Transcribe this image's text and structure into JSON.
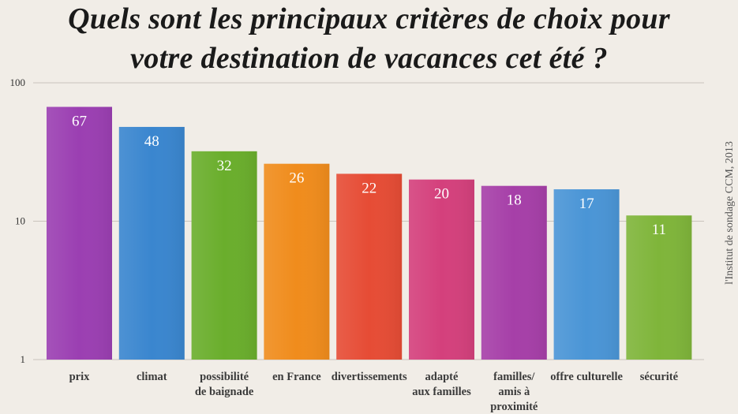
{
  "title_lines": [
    "Quels sont les principaux critères de choix pour",
    "votre destination de vacances cet été ?"
  ],
  "source": "l'Institut de sondage CCM, 2013",
  "chart_data": {
    "type": "bar",
    "title": "Quels sont les principaux critères de choix pour votre destination de vacances cet été ?",
    "yscale": "log",
    "ylim": [
      1,
      100
    ],
    "yticks": [
      "1",
      "10",
      "100"
    ],
    "grid": true,
    "categories": [
      "prix",
      "climat",
      "possibilité de baignade",
      "en France",
      "divertissements",
      "adapté aux familles",
      "familles/ amis à proximité",
      "offre culturelle",
      "sécurité"
    ],
    "category_lines": [
      [
        "prix"
      ],
      [
        "climat"
      ],
      [
        "possibilité",
        "de baignade"
      ],
      [
        "en France"
      ],
      [
        "divertissements"
      ],
      [
        "adapté",
        "aux familles"
      ],
      [
        "familles/",
        "amis à",
        "proximité"
      ],
      [
        "offre culturelle"
      ],
      [
        "sécurité"
      ]
    ],
    "values": [
      67,
      48,
      32,
      26,
      22,
      20,
      18,
      17,
      11
    ],
    "value_labels": [
      "67",
      "48",
      "32",
      "26",
      "22",
      "20",
      "18",
      "17",
      "11"
    ],
    "colors": [
      "#9b3fb2",
      "#3a86cf",
      "#6aae2c",
      "#f08c1c",
      "#e64c35",
      "#d4407c",
      "#a63fa8",
      "#4a95d6",
      "#7fb53a"
    ]
  }
}
